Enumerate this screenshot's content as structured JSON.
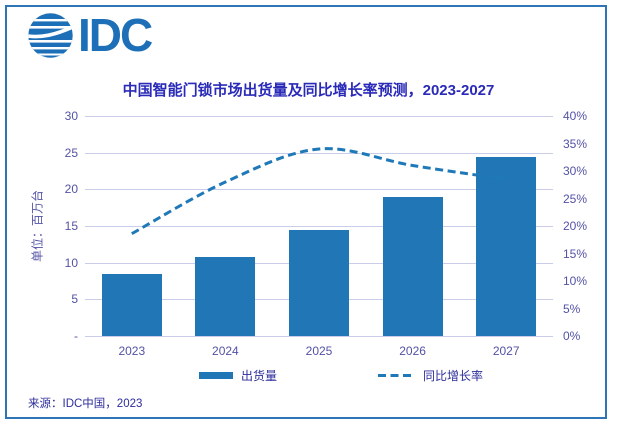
{
  "brand": {
    "name": "IDC"
  },
  "header": {
    "title": "中国智能门锁市场出货量及同比增长率预测，2023-2027"
  },
  "footer": {
    "source": "来源：IDC中国，2023"
  },
  "legend": {
    "shipments": "出货量",
    "growth": "同比增长率"
  },
  "chart_data": {
    "type": "bar",
    "subtype": "combo-bar-dashed-line",
    "title": "中国智能门锁市场出货量及同比增长率预测，2023-2027",
    "categories": [
      "2023",
      "2024",
      "2025",
      "2026",
      "2027"
    ],
    "series": [
      {
        "name": "出货量",
        "type": "bar",
        "axis": "left",
        "unit": "百万台",
        "values": [
          8.4,
          10.8,
          14.5,
          18.9,
          24.4
        ]
      },
      {
        "name": "同比增长率",
        "type": "line",
        "style": "dashed",
        "axis": "right",
        "unit": "%",
        "values": [
          18.6,
          28.0,
          34.0,
          31.0,
          28.5
        ]
      }
    ],
    "left_axis": {
      "title": "单位：百万台",
      "min": 0,
      "max": 30,
      "ticks": [
        "30",
        "25",
        "20",
        "15",
        "10",
        "5",
        "-"
      ]
    },
    "right_axis": {
      "min": 0,
      "max": 40,
      "ticks": [
        "40%",
        "35%",
        "30%",
        "25%",
        "20%",
        "15%",
        "10%",
        "5%",
        "0%"
      ]
    },
    "grid": true,
    "legend_position": "bottom"
  },
  "colors": {
    "brand": "#1d70b7",
    "bar": "#2176b5",
    "line": "#1f79b8",
    "grid": "#c9cdea",
    "border": "#2e75b6",
    "title": "#2a2ab8",
    "axis": "#5352a5",
    "dark": "#2d2d9b"
  }
}
